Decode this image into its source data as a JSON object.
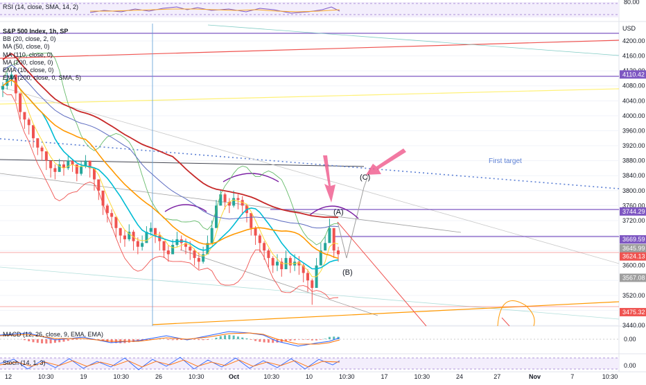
{
  "panes": {
    "rsi": {
      "label": "RSI (14, close, SMA, 14, 2)",
      "levels": [
        "80.00"
      ]
    },
    "price": {
      "title": "S&P 500 Index, 1h, SP",
      "indicators": [
        "BB (20, close, 2, 0)",
        "MA (50, close, 0)",
        "MA (110, close, 0)",
        "MA (200, close, 0)",
        "EMA (10, close, 0)",
        "EMA (200, close, 0, SMA, 5)"
      ],
      "currency": "USD"
    },
    "macd": {
      "label": "MACD (12, 26, close, 9, EMA, EMA)",
      "levels": [
        "0.00"
      ]
    },
    "stoch": {
      "label": "Stoch (14, 1, 3)",
      "levels": [
        "0.00"
      ]
    }
  },
  "annotations": {
    "first_target": "First target",
    "wave_a": "(A)",
    "wave_b": "(B)",
    "wave_c": "(C)"
  },
  "price_labels": [
    {
      "text": "4110.42",
      "color": "#7e57c2"
    },
    {
      "text": "3744.29",
      "color": "#7e57c2"
    },
    {
      "text": "3669.59",
      "color": "#7e57c2"
    },
    {
      "text": "3669.59",
      "color": "#7e57c2"
    },
    {
      "text": "3645.99",
      "color": "#9e9e9e"
    },
    {
      "text": "3624.13",
      "color": "#ef5350"
    },
    {
      "text": "3567.08",
      "color": "#9e9e9e"
    },
    {
      "text": "3475.32",
      "color": "#ef5350"
    }
  ],
  "chart_data": {
    "type": "candlestick",
    "title": "S&P 500 Index, 1h, SP",
    "y_unit": "USD",
    "y_ticks": [
      3440,
      3480,
      3520,
      3560,
      3600,
      3640,
      3680,
      3720,
      3760,
      3800,
      3840,
      3880,
      3920,
      3960,
      4000,
      4040,
      4080,
      4120,
      4160,
      4200
    ],
    "y_tick_labels": [
      "3440.00",
      "3520.00",
      "3600.00",
      "3720.00",
      "3760.00",
      "3800.00",
      "3840.00",
      "3880.00",
      "3920.00",
      "3960.00",
      "4000.00",
      "4040.00",
      "4080.00",
      "4120.00",
      "4160.00",
      "4200.00"
    ],
    "ylim": [
      3420,
      4240
    ],
    "x_tick_labels": [
      "12",
      "10:30",
      "19",
      "10:30",
      "26",
      "10:30",
      "Oct",
      "10:30",
      "10",
      "10:30",
      "17",
      "10:30",
      "24",
      "27",
      "Nov",
      "7",
      "10:30"
    ],
    "series_close": [
      4080,
      4098,
      4110,
      4060,
      4010,
      3990,
      3975,
      3940,
      3915,
      3905,
      3880,
      3860,
      3850,
      3870,
      3860,
      3880,
      3870,
      3845,
      3865,
      3880,
      3860,
      3830,
      3800,
      3760,
      3740,
      3730,
      3700,
      3680,
      3670,
      3690,
      3665,
      3650,
      3660,
      3690,
      3700,
      3680,
      3665,
      3640,
      3630,
      3655,
      3670,
      3660,
      3650,
      3640,
      3620,
      3610,
      3630,
      3660,
      3700,
      3760,
      3790,
      3770,
      3760,
      3780,
      3775,
      3760,
      3740,
      3700,
      3680,
      3660,
      3640,
      3620,
      3600,
      3610,
      3590,
      3620,
      3600,
      3610,
      3600,
      3580,
      3560,
      3540,
      3600,
      3640,
      3660,
      3700,
      3640,
      3630
    ],
    "series_high": [
      4090,
      4115,
      4120,
      4090,
      4040,
      4010,
      3995,
      3960,
      3935,
      3920,
      3900,
      3880,
      3870,
      3885,
      3880,
      3895,
      3885,
      3870,
      3880,
      3895,
      3880,
      3860,
      3825,
      3790,
      3765,
      3750,
      3725,
      3700,
      3695,
      3710,
      3695,
      3675,
      3680,
      3705,
      3715,
      3700,
      3690,
      3665,
      3655,
      3670,
      3690,
      3680,
      3672,
      3665,
      3645,
      3635,
      3650,
      3680,
      3720,
      3775,
      3800,
      3795,
      3780,
      3800,
      3790,
      3785,
      3765,
      3730,
      3705,
      3685,
      3665,
      3645,
      3625,
      3630,
      3620,
      3640,
      3625,
      3630,
      3625,
      3605,
      3590,
      3565,
      3620,
      3660,
      3680,
      3725,
      3690,
      3650
    ],
    "series_low": [
      4050,
      4070,
      4080,
      4040,
      3990,
      3965,
      3950,
      3915,
      3895,
      3880,
      3855,
      3835,
      3830,
      3850,
      3840,
      3855,
      3850,
      3825,
      3840,
      3860,
      3835,
      3800,
      3775,
      3735,
      3715,
      3700,
      3675,
      3660,
      3650,
      3665,
      3640,
      3630,
      3640,
      3665,
      3680,
      3660,
      3640,
      3620,
      3610,
      3630,
      3650,
      3640,
      3630,
      3615,
      3600,
      3590,
      3605,
      3630,
      3680,
      3730,
      3760,
      3750,
      3740,
      3755,
      3750,
      3735,
      3715,
      3680,
      3655,
      3635,
      3615,
      3595,
      3580,
      3585,
      3570,
      3595,
      3580,
      3585,
      3575,
      3555,
      3530,
      3495,
      3575,
      3615,
      3640,
      3670,
      3620,
      3610
    ]
  }
}
